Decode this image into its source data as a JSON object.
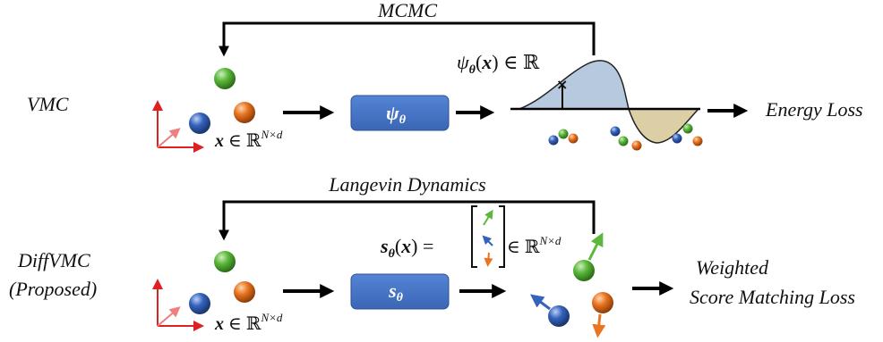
{
  "top": {
    "loop_label": "MCMC",
    "row_label": "VMC",
    "box_symbol": "ψ",
    "box_sub": "θ",
    "func_label": "ψθ(x) ∈ ℝ",
    "input_label": "x ∈ ℝN×d",
    "output_label": "Energy Loss"
  },
  "bottom": {
    "loop_label": "Langevin Dynamics",
    "row_label_line1": "DiffVMC",
    "row_label_line2": "(Proposed)",
    "box_symbol": "s",
    "box_sub": "θ",
    "score_label": "sθ(x) =",
    "score_space": "∈ ℝN×d",
    "input_label": "x ∈ ℝN×d",
    "output_line1": "Weighted",
    "output_line2": "Score Matching Loss"
  },
  "colors": {
    "box_fill": "#4472c4",
    "arrow": "#000000",
    "axis": "#e02020",
    "particle_green": "#4ea72e",
    "particle_blue": "#2f5fb3",
    "particle_orange": "#e36c1a",
    "wave_positive": "#b7c9de",
    "wave_negative": "#dccfa6"
  },
  "icons": [
    "particle-green-icon",
    "particle-blue-icon",
    "particle-orange-icon",
    "axes-icon",
    "arrow-right-icon"
  ]
}
